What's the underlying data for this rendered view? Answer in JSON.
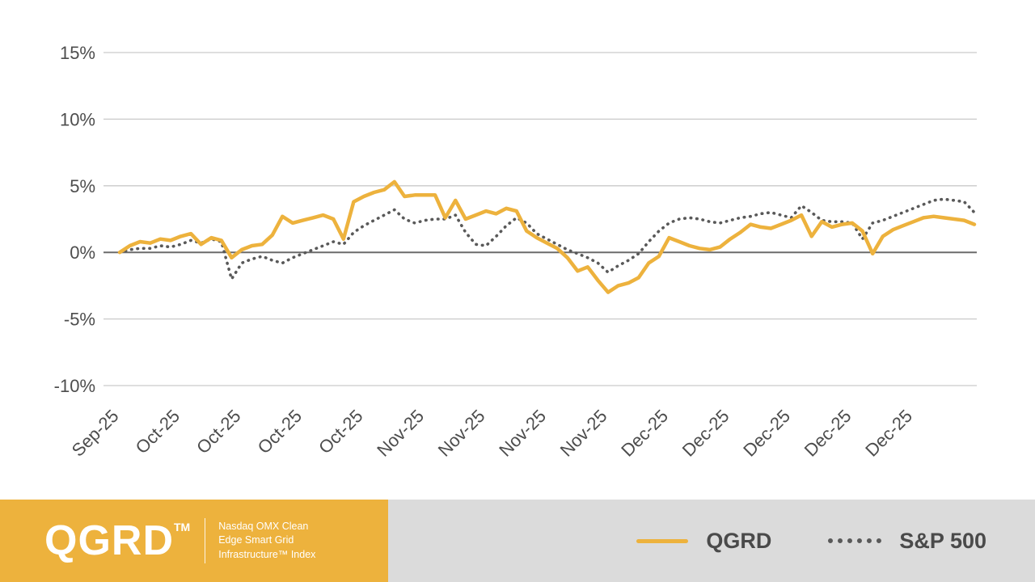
{
  "chart_data": {
    "type": "line",
    "title": "",
    "xlabel": "",
    "ylabel": "",
    "ylim": [
      -10,
      15
    ],
    "yticks": [
      15,
      10,
      5,
      0,
      -5,
      -10
    ],
    "ytick_suffix": "%",
    "grid": true,
    "legend_position": "bottom",
    "x_label_step": 6,
    "x_labels": [
      "Sep-25",
      "Oct-25",
      "Oct-25",
      "Oct-25",
      "Oct-25",
      "Nov-25",
      "Nov-25",
      "Nov-25",
      "Nov-25",
      "Dec-25",
      "Dec-25",
      "Dec-25",
      "Dec-25",
      "Dec-25"
    ],
    "series": [
      {
        "name": "QGRD",
        "color": "#EDB23D",
        "style": "solid",
        "values": [
          0.0,
          0.5,
          0.8,
          0.7,
          1.0,
          0.9,
          1.2,
          1.4,
          0.6,
          1.1,
          0.9,
          -0.4,
          0.2,
          0.5,
          0.6,
          1.3,
          2.7,
          2.2,
          2.4,
          2.6,
          2.8,
          2.5,
          1.0,
          3.8,
          4.2,
          4.5,
          4.7,
          5.3,
          4.2,
          4.3,
          4.3,
          4.3,
          2.6,
          3.9,
          2.5,
          2.8,
          3.1,
          2.9,
          3.3,
          3.1,
          1.6,
          1.1,
          0.7,
          0.3,
          -0.4,
          -1.4,
          -1.1,
          -2.1,
          -3.0,
          -2.5,
          -2.3,
          -1.9,
          -0.8,
          -0.3,
          1.1,
          0.8,
          0.5,
          0.3,
          0.2,
          0.4,
          1.0,
          1.5,
          2.1,
          1.9,
          1.8,
          2.1,
          2.4,
          2.8,
          1.2,
          2.3,
          1.9,
          2.1,
          2.2,
          1.6,
          -0.1,
          1.2,
          1.7,
          2.0,
          2.3,
          2.6,
          2.7,
          2.6,
          2.5,
          2.4,
          2.1
        ]
      },
      {
        "name": "S&P 500",
        "color": "#595959",
        "style": "dotted",
        "values": [
          0.0,
          0.2,
          0.3,
          0.3,
          0.5,
          0.4,
          0.6,
          0.9,
          0.7,
          1.0,
          0.8,
          -2.0,
          -0.8,
          -0.5,
          -0.3,
          -0.6,
          -0.8,
          -0.4,
          -0.1,
          0.2,
          0.5,
          0.8,
          0.6,
          1.5,
          2.0,
          2.4,
          2.8,
          3.2,
          2.5,
          2.2,
          2.4,
          2.5,
          2.5,
          2.8,
          1.5,
          0.6,
          0.5,
          1.2,
          2.0,
          2.6,
          2.2,
          1.4,
          1.0,
          0.6,
          0.2,
          -0.1,
          -0.4,
          -0.8,
          -1.5,
          -1.0,
          -0.6,
          -0.1,
          0.8,
          1.6,
          2.2,
          2.5,
          2.6,
          2.5,
          2.3,
          2.2,
          2.4,
          2.6,
          2.7,
          2.9,
          3.0,
          2.8,
          2.6,
          3.5,
          3.0,
          2.4,
          2.3,
          2.3,
          2.2,
          1.0,
          2.2,
          2.4,
          2.7,
          3.0,
          3.3,
          3.6,
          3.9,
          4.0,
          3.9,
          3.8,
          3.0
        ]
      }
    ]
  },
  "footer": {
    "logo": "QGRD",
    "logo_tm": "TM",
    "tagline": "Nasdaq OMX Clean\nEdge Smart Grid\nInfrastructure™ Index",
    "legend": [
      {
        "label": "QGRD"
      },
      {
        "label": "S&P 500"
      }
    ]
  }
}
